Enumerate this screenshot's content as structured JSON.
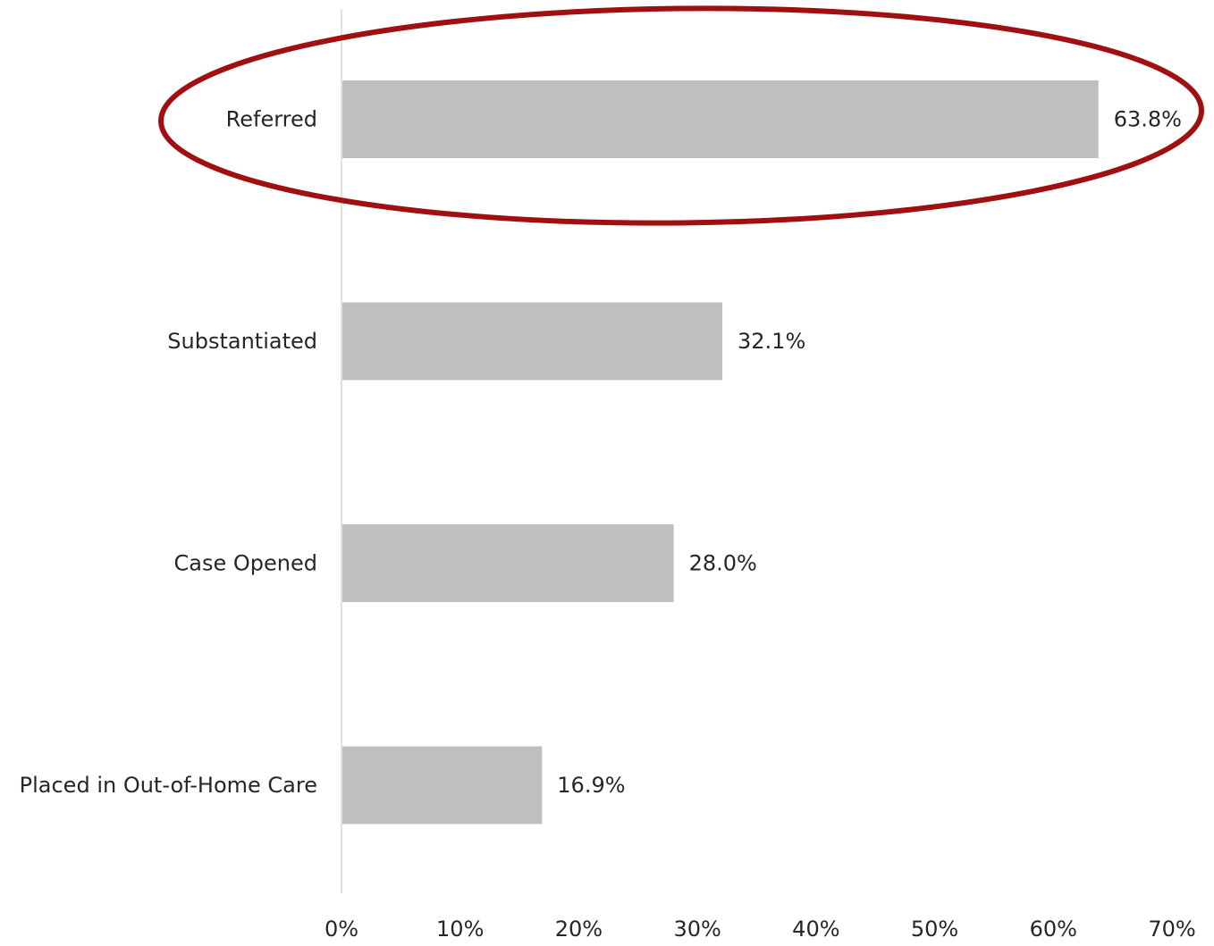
{
  "chart_data": {
    "type": "bar",
    "orientation": "horizontal",
    "categories": [
      "Referred",
      "Substantiated",
      "Case Opened",
      "Placed in Out-of-Home Care"
    ],
    "values": [
      63.8,
      32.1,
      28.0,
      16.9
    ],
    "value_labels": [
      "63.8%",
      "32.1%",
      "28.0%",
      "16.9%"
    ],
    "xlim": [
      0,
      70
    ],
    "ticks": [
      0,
      10,
      20,
      30,
      40,
      50,
      60,
      70
    ],
    "tick_labels": [
      "0%",
      "10%",
      "20%",
      "30%",
      "40%",
      "50%",
      "60%",
      "70%"
    ],
    "grid": false,
    "highlighted_category": "Referred",
    "colors": {
      "bar": "#bfbfbf",
      "axis": "#d9d9d2",
      "highlight": "#a01010",
      "text": "#262626"
    }
  }
}
